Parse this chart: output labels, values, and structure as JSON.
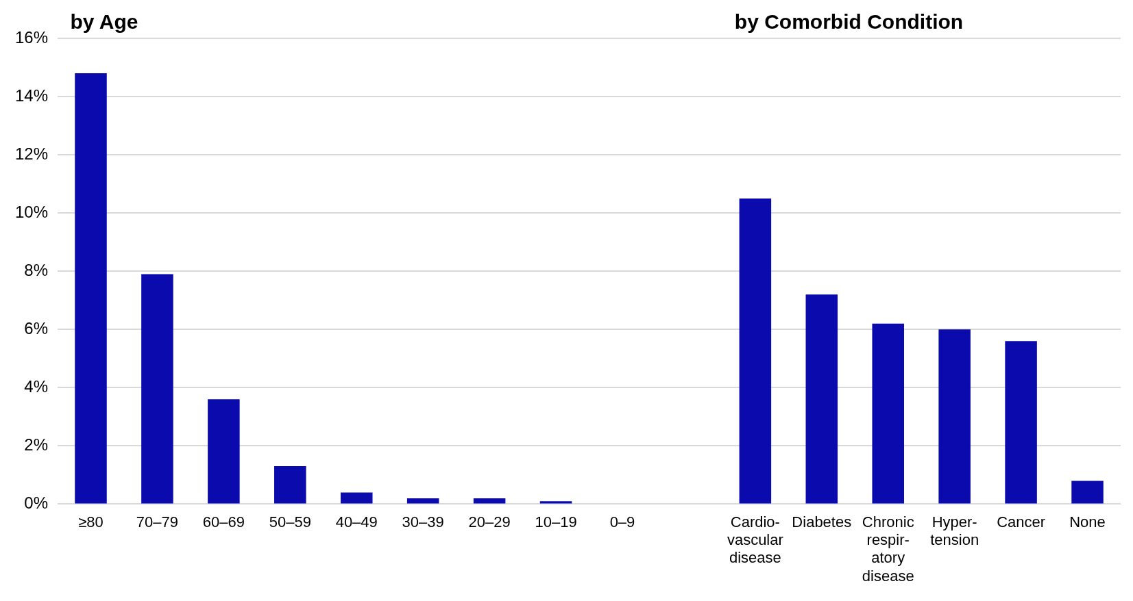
{
  "chart_data": {
    "type": "bar",
    "annotations": [
      "by Age",
      "by Comorbid Condition"
    ],
    "categories": [
      "≥80",
      "70–79",
      "60–69",
      "50–59",
      "40–49",
      "30–39",
      "20–29",
      "10–19",
      "0–9",
      null,
      "Cardio-\nvascular\ndisease",
      "Diabetes",
      "Chronic\nrespir-\natory\ndisease",
      "Hyper-\ntension",
      "Cancer",
      "None"
    ],
    "values": [
      14.8,
      7.9,
      3.6,
      1.3,
      0.4,
      0.2,
      0.2,
      0.1,
      0,
      null,
      10.5,
      7.2,
      6.2,
      6.0,
      5.6,
      0.8
    ],
    "color": "#0a0aad",
    "ylim": [
      0,
      16
    ],
    "yticks": [
      {
        "value": 0,
        "label": "0%"
      },
      {
        "value": 2,
        "label": "2%"
      },
      {
        "value": 4,
        "label": "4%"
      },
      {
        "value": 6,
        "label": "6%"
      },
      {
        "value": 8,
        "label": "8%"
      },
      {
        "value": 10,
        "label": "10%"
      },
      {
        "value": 12,
        "label": "12%"
      },
      {
        "value": 14,
        "label": "14%"
      },
      {
        "value": 16,
        "label": "16%"
      }
    ],
    "grid": "y",
    "legend": false
  }
}
